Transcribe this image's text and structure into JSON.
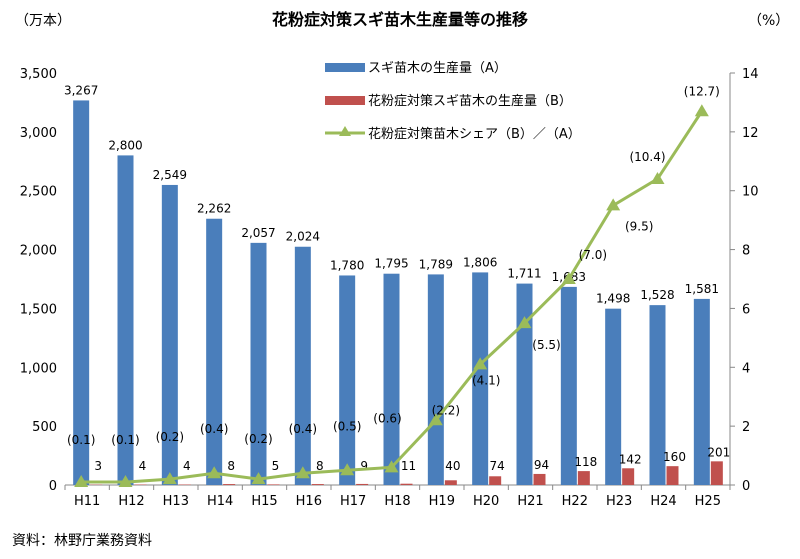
{
  "chart_data": {
    "type": "bar",
    "title": "花粉症対策スギ苗木生産量等の推移",
    "ylabel_left": "（万本）",
    "ylabel_right": "（%）",
    "source": "資料：林野庁業務資料",
    "categories": [
      "H11",
      "H12",
      "H13",
      "H14",
      "H15",
      "H16",
      "H17",
      "H18",
      "H19",
      "H20",
      "H21",
      "H22",
      "H23",
      "H24",
      "H25"
    ],
    "ylim_left": [
      0,
      3500
    ],
    "yticks_left": [
      "0",
      "500",
      "1,000",
      "1,500",
      "2,000",
      "2,500",
      "3,000",
      "3,500"
    ],
    "ylim_right": [
      0,
      14
    ],
    "yticks_right": [
      "0",
      "2",
      "4",
      "6",
      "8",
      "10",
      "12",
      "14"
    ],
    "legend_position": "top-center",
    "series": [
      {
        "name": "スギ苗木の生産量（A）",
        "type": "bar",
        "axis": "left",
        "color": "#4a7ebb",
        "values": [
          3267,
          2800,
          2549,
          2262,
          2057,
          2024,
          1780,
          1795,
          1789,
          1806,
          1711,
          1683,
          1498,
          1528,
          1581
        ],
        "labels": [
          "3,267",
          "2,800",
          "2,549",
          "2,262",
          "2,057",
          "2,024",
          "1,780",
          "1,795",
          "1,789",
          "1,806",
          "1,711",
          "1,683",
          "1,498",
          "1,528",
          "1,581"
        ]
      },
      {
        "name": "花粉症対策スギ苗木の生産量（B）",
        "type": "bar",
        "axis": "left",
        "color": "#c0504d",
        "values": [
          3,
          4,
          4,
          8,
          5,
          8,
          9,
          11,
          40,
          74,
          94,
          118,
          142,
          160,
          201
        ],
        "labels": [
          "3",
          "4",
          "4",
          "8",
          "5",
          "8",
          "9",
          "11",
          "40",
          "74",
          "94",
          "118",
          "142",
          "160",
          "201"
        ]
      },
      {
        "name": "花粉症対策苗木シェア（B）／（A）",
        "type": "line",
        "axis": "right",
        "color": "#9bbb59",
        "values": [
          0.1,
          0.1,
          0.2,
          0.4,
          0.2,
          0.4,
          0.5,
          0.6,
          2.2,
          4.1,
          5.5,
          7.0,
          9.5,
          10.4,
          12.7
        ],
        "labels": [
          "(0.1)",
          "(0.1)",
          "(0.2)",
          "(0.4)",
          "(0.2)",
          "(0.4)",
          "(0.5)",
          "(0.6)",
          "(2.2)",
          "(4.1)",
          "(5.5)",
          "(7.0)",
          "(9.5)",
          "(10.4)",
          "(12.7)"
        ]
      }
    ]
  }
}
